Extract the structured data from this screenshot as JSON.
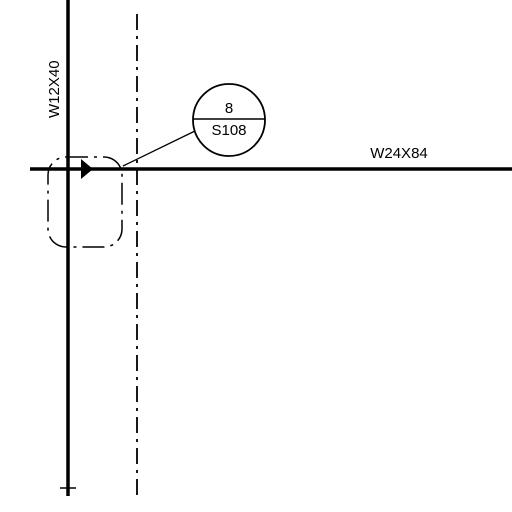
{
  "drawing": {
    "column_label": "W12X40",
    "beam_label": "W24X84",
    "detail_callout": {
      "detail_number": "8",
      "sheet_number": "S108"
    },
    "line_color": "#000000",
    "background": "#ffffff"
  }
}
